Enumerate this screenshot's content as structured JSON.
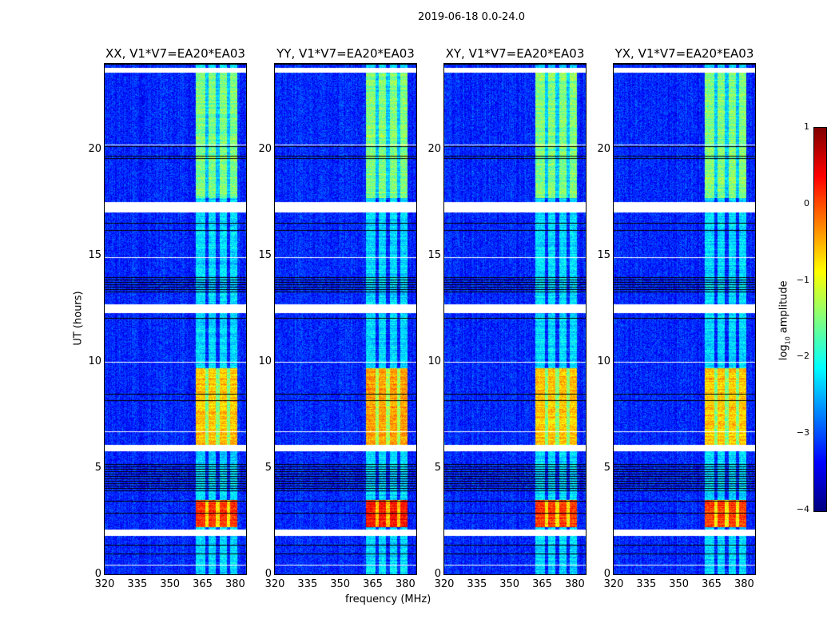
{
  "chart_data": {
    "type": "heatmap",
    "title": "2019-06-18 0.0-24.0",
    "xlabel": "frequency (MHz)",
    "ylabel": "UT (hours)",
    "xlim": [
      320,
      385
    ],
    "ylim": [
      0,
      24
    ],
    "xticks": [
      "320",
      "335",
      "350",
      "365",
      "380"
    ],
    "xtick_values": [
      320,
      335,
      350,
      365,
      380
    ],
    "yticks": [
      "0",
      "5",
      "10",
      "15",
      "20"
    ],
    "ytick_values": [
      0,
      5,
      10,
      15,
      20
    ],
    "panels": [
      {
        "title": "XX, V1*V7=EA20*EA03"
      },
      {
        "title": "YY, V1*V7=EA20*EA03"
      },
      {
        "title": "XY, V1*V7=EA20*EA03"
      },
      {
        "title": "YX, V1*V7=EA20*EA03"
      }
    ],
    "colorbar": {
      "label": "log10 amplitude",
      "label_main": "log",
      "label_sub": "10",
      "label_rest": " amplitude",
      "range": [
        -4,
        1
      ],
      "ticks": [
        "1",
        "0",
        "−1",
        "−2",
        "−3",
        "−4"
      ],
      "tick_values": [
        1,
        0,
        -1,
        -2,
        -3,
        -4
      ],
      "colormap": "jet"
    },
    "background_level": -3.2,
    "features": {
      "bright_band_mhz": [
        362,
        381
      ],
      "band_gaps_mhz": [
        367,
        372,
        377
      ],
      "flagged_hours": [
        [
          23.6,
          23.8
        ],
        [
          17.0,
          17.5
        ],
        [
          12.3,
          12.7
        ],
        [
          5.8,
          6.1
        ],
        [
          1.8,
          2.1
        ]
      ],
      "dark_hours": [
        [
          13.2,
          14.0
        ],
        [
          3.9,
          5.2
        ]
      ],
      "strong_intervals": [
        {
          "hours": [
            6.0,
            9.7
          ],
          "level": -0.6
        },
        {
          "hours": [
            2.2,
            3.5
          ],
          "level": 0.1
        },
        {
          "hours": [
            17.7,
            23.6
          ],
          "level": -1.5
        }
      ]
    }
  }
}
